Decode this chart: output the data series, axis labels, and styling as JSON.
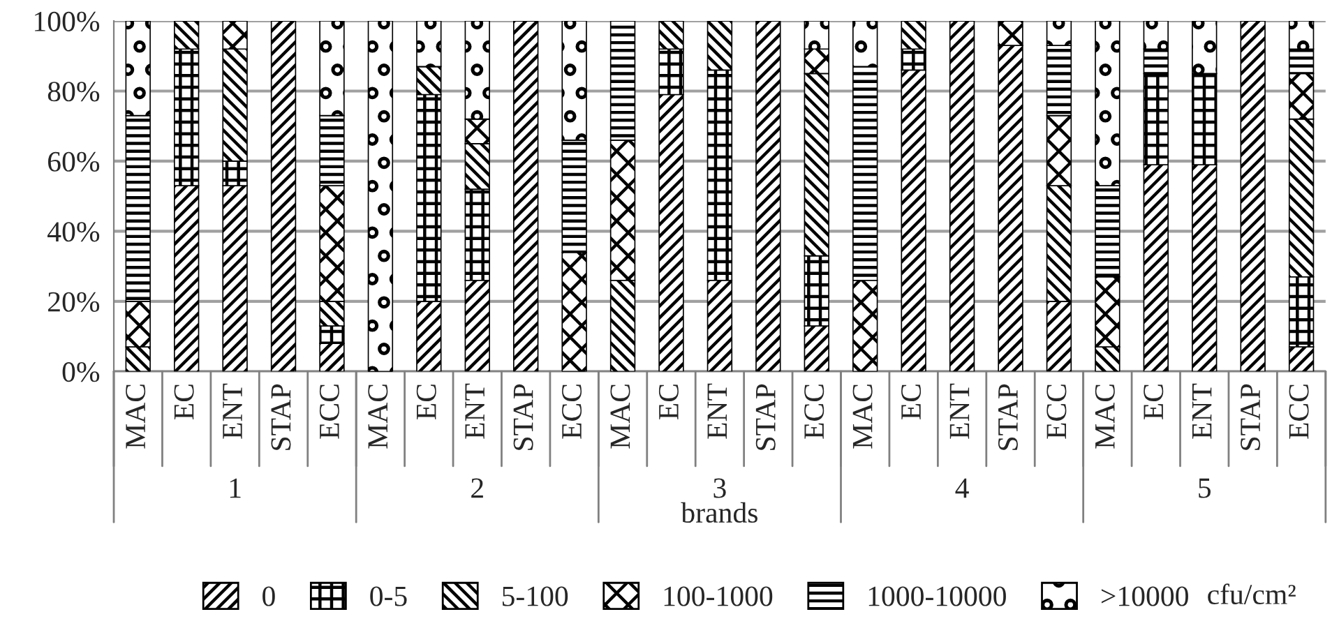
{
  "chart_data": {
    "type": "bar",
    "stacked": true,
    "xlabel": "brands",
    "legend_title": "cfu/cm²",
    "categories": [
      "MAC",
      "EC",
      "ENT",
      "STAP",
      "ECC",
      "MAC",
      "EC",
      "ENT",
      "STAP",
      "ECC",
      "MAC",
      "EC",
      "ENT",
      "STAP",
      "ECC",
      "MAC",
      "EC",
      "ENT",
      "STAP",
      "ECC",
      "MAC",
      "EC",
      "ENT",
      "STAP",
      "ECC"
    ],
    "annotations": [
      "1",
      "2",
      "3",
      "4",
      "5"
    ],
    "series": [
      {
        "name": "0",
        "color": "#000000",
        "values": [
          0,
          53,
          53,
          100,
          8,
          0,
          20,
          26,
          100,
          0,
          0,
          79,
          26,
          100,
          13,
          0,
          86,
          100,
          93,
          20,
          0,
          59,
          59,
          100,
          7
        ]
      },
      {
        "name": "0-5",
        "color": "#000000",
        "values": [
          0,
          39,
          7,
          0,
          5,
          0,
          59,
          26,
          0,
          0,
          0,
          13,
          60,
          0,
          20,
          0,
          6,
          0,
          0,
          0,
          0,
          26,
          26,
          0,
          20
        ]
      },
      {
        "name": "5-100",
        "color": "#000000",
        "values": [
          7,
          8,
          32,
          0,
          7,
          0,
          8,
          13,
          0,
          0,
          26,
          8,
          14,
          0,
          52,
          0,
          8,
          0,
          0,
          33,
          7,
          0,
          0,
          0,
          45
        ]
      },
      {
        "name": "100-1000",
        "color": "#000000",
        "values": [
          13,
          0,
          8,
          0,
          33,
          0,
          0,
          7,
          0,
          34,
          40,
          0,
          0,
          0,
          7,
          26,
          0,
          0,
          7,
          20,
          20,
          0,
          0,
          0,
          13
        ]
      },
      {
        "name": "1000-10000",
        "color": "#000000",
        "values": [
          53,
          0,
          0,
          0,
          20,
          0,
          0,
          0,
          0,
          32,
          34,
          0,
          0,
          0,
          0,
          61,
          0,
          0,
          0,
          20,
          26,
          7,
          0,
          0,
          7
        ]
      },
      {
        "name": ">10000",
        "color": "#000000",
        "values": [
          27,
          0,
          0,
          0,
          27,
          100,
          13,
          28,
          0,
          34,
          0,
          0,
          0,
          0,
          8,
          13,
          0,
          0,
          0,
          7,
          47,
          8,
          15,
          0,
          8
        ]
      }
    ],
    "ylim": [
      0,
      100
    ],
    "yticks": [
      {
        "value": 0,
        "label": "0%"
      },
      {
        "value": 20,
        "label": "20%"
      },
      {
        "value": 40,
        "label": "40%"
      },
      {
        "value": 60,
        "label": "60%"
      },
      {
        "value": 80,
        "label": "80%"
      },
      {
        "value": 100,
        "label": "100%"
      }
    ],
    "grid": "y",
    "legend": "bottom"
  }
}
